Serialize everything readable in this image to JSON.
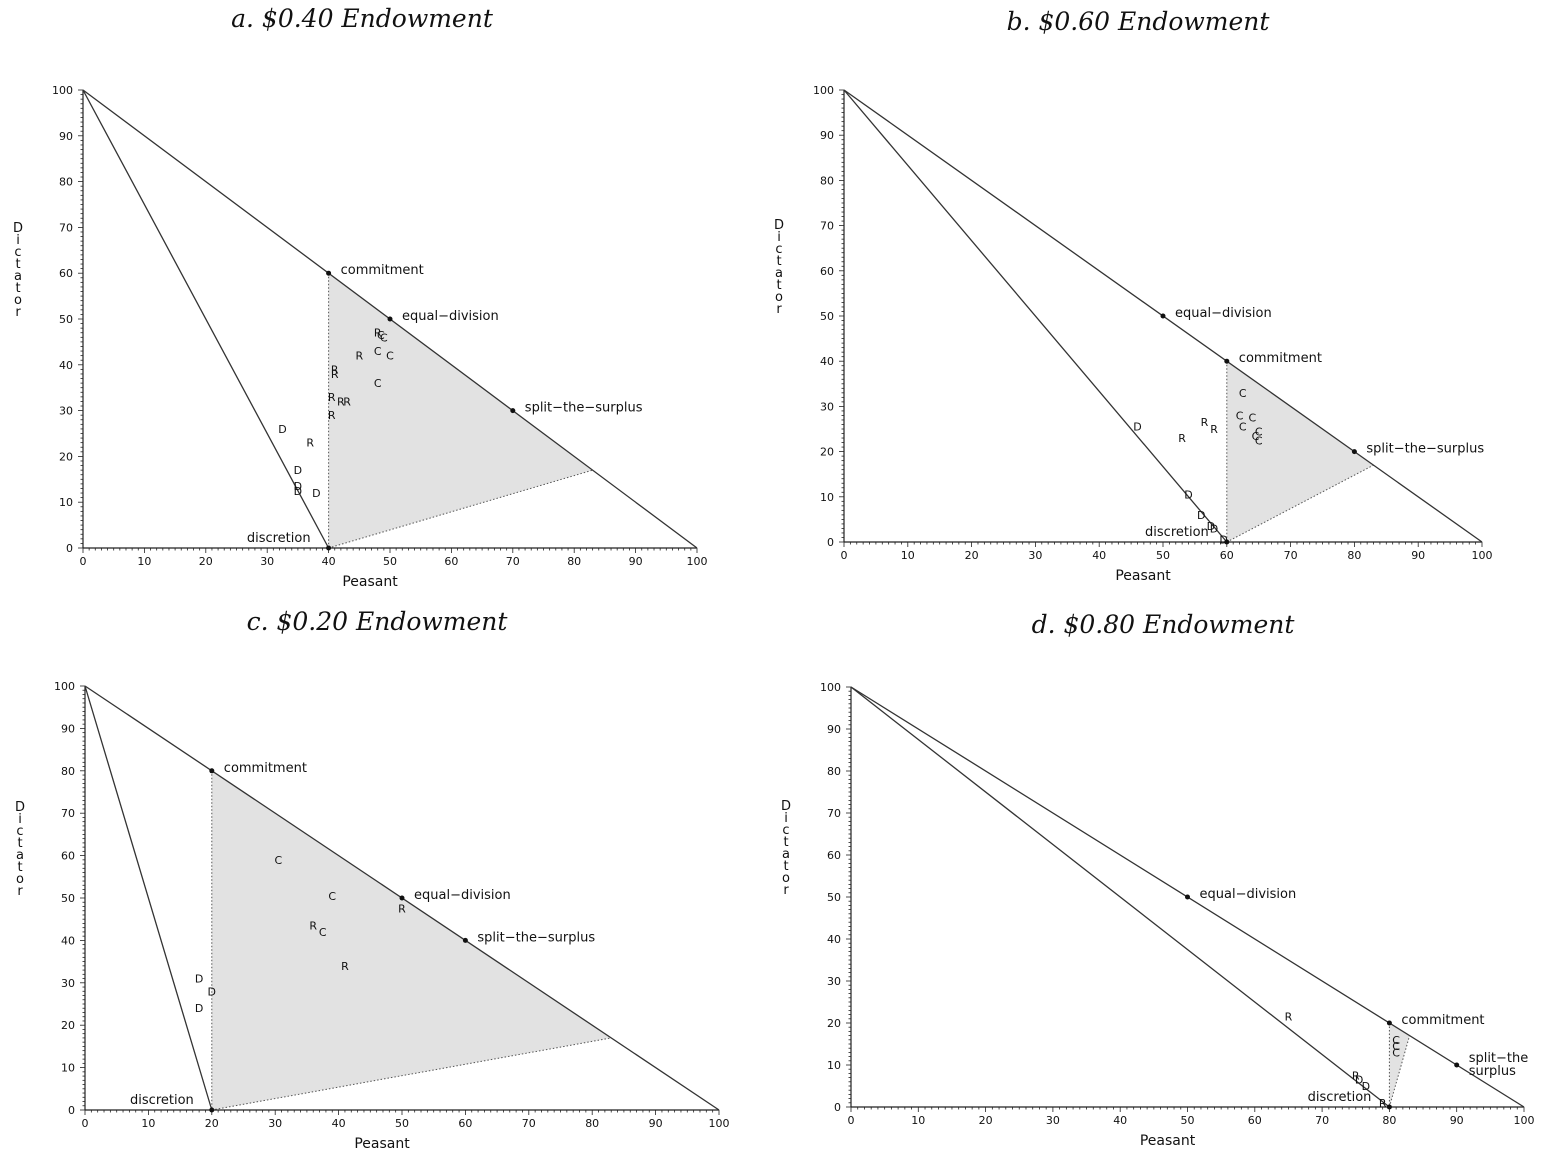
{
  "chart_data": [
    {
      "type": "scatter",
      "title": "a. $0.40 Endowment",
      "xlabel": "Peasant",
      "ylabel": "Dictator",
      "xlim": [
        0,
        100
      ],
      "ylim": [
        0,
        100
      ],
      "xticks": [
        0,
        10,
        20,
        30,
        40,
        50,
        60,
        70,
        80,
        90,
        100
      ],
      "yticks": [
        0,
        10,
        20,
        30,
        40,
        50,
        60,
        70,
        80,
        90,
        100
      ],
      "lines": [
        {
          "from": [
            0,
            100
          ],
          "to": [
            100,
            0
          ]
        },
        {
          "from": [
            0,
            100
          ],
          "to": [
            40,
            0
          ]
        }
      ],
      "shaded_region": [
        [
          40,
          60
        ],
        [
          83,
          17
        ],
        [
          40,
          0
        ]
      ],
      "annotations": [
        {
          "label": "commitment",
          "x": 40,
          "y": 60
        },
        {
          "label": "equal−division",
          "x": 50,
          "y": 50
        },
        {
          "label": "split−the−surplus",
          "x": 70,
          "y": 30
        },
        {
          "label": "discretion",
          "x": 40,
          "y": 0,
          "side": "left"
        }
      ],
      "points": [
        {
          "label": "R",
          "x": 48,
          "y": 47
        },
        {
          "label": "C",
          "x": 48.5,
          "y": 46.5
        },
        {
          "label": "C",
          "x": 49,
          "y": 46
        },
        {
          "label": "C",
          "x": 48,
          "y": 43
        },
        {
          "label": "C",
          "x": 50,
          "y": 42
        },
        {
          "label": "R",
          "x": 45,
          "y": 42
        },
        {
          "label": "R",
          "x": 41,
          "y": 39
        },
        {
          "label": "R",
          "x": 41,
          "y": 38
        },
        {
          "label": "C",
          "x": 48,
          "y": 36
        },
        {
          "label": "R",
          "x": 40.5,
          "y": 33
        },
        {
          "label": "R",
          "x": 42,
          "y": 32
        },
        {
          "label": "R",
          "x": 43,
          "y": 32
        },
        {
          "label": "R",
          "x": 40.5,
          "y": 29
        },
        {
          "label": "D",
          "x": 32.5,
          "y": 26
        },
        {
          "label": "R",
          "x": 37,
          "y": 23
        },
        {
          "label": "D",
          "x": 35,
          "y": 17
        },
        {
          "label": "D",
          "x": 35,
          "y": 13.5
        },
        {
          "label": "D",
          "x": 35,
          "y": 12.5
        },
        {
          "label": "D",
          "x": 38,
          "y": 12
        }
      ]
    },
    {
      "type": "scatter",
      "title": "b. $0.60 Endowment",
      "xlabel": "Peasant",
      "ylabel": "Dictator",
      "xlim": [
        0,
        100
      ],
      "ylim": [
        0,
        100
      ],
      "xticks": [
        0,
        10,
        20,
        30,
        40,
        50,
        60,
        70,
        80,
        90,
        100
      ],
      "yticks": [
        0,
        10,
        20,
        30,
        40,
        50,
        60,
        70,
        80,
        90,
        100
      ],
      "lines": [
        {
          "from": [
            0,
            100
          ],
          "to": [
            100,
            0
          ]
        },
        {
          "from": [
            0,
            100
          ],
          "to": [
            60,
            0
          ]
        }
      ],
      "shaded_region": [
        [
          60,
          40
        ],
        [
          83,
          17
        ],
        [
          60,
          0
        ]
      ],
      "annotations": [
        {
          "label": "equal−division",
          "x": 50,
          "y": 50
        },
        {
          "label": "commitment",
          "x": 60,
          "y": 40
        },
        {
          "label": "split−the−surplus",
          "x": 80,
          "y": 20
        },
        {
          "label": "discretion",
          "x": 60,
          "y": 0,
          "side": "left"
        }
      ],
      "points": [
        {
          "label": "C",
          "x": 62.5,
          "y": 33
        },
        {
          "label": "R",
          "x": 56.5,
          "y": 26.5
        },
        {
          "label": "R",
          "x": 58,
          "y": 25
        },
        {
          "label": "C",
          "x": 62,
          "y": 28
        },
        {
          "label": "C",
          "x": 64,
          "y": 27.5
        },
        {
          "label": "C",
          "x": 62.5,
          "y": 25.5
        },
        {
          "label": "C",
          "x": 65,
          "y": 24.5
        },
        {
          "label": "C",
          "x": 64.5,
          "y": 23.5
        },
        {
          "label": "C",
          "x": 65,
          "y": 22.5
        },
        {
          "label": "D",
          "x": 46,
          "y": 25.5
        },
        {
          "label": "R",
          "x": 53,
          "y": 23
        },
        {
          "label": "D",
          "x": 54,
          "y": 10.5
        },
        {
          "label": "D",
          "x": 56,
          "y": 6
        },
        {
          "label": "D",
          "x": 57.5,
          "y": 3.5
        },
        {
          "label": "D",
          "x": 58,
          "y": 3
        },
        {
          "label": "D",
          "x": 59.5,
          "y": 0.5
        }
      ]
    },
    {
      "type": "scatter",
      "title": "c. $0.20 Endowment",
      "xlabel": "Peasant",
      "ylabel": "Dictator",
      "xlim": [
        0,
        100
      ],
      "ylim": [
        0,
        100
      ],
      "xticks": [
        0,
        10,
        20,
        30,
        40,
        50,
        60,
        70,
        80,
        90,
        100
      ],
      "yticks": [
        0,
        10,
        20,
        30,
        40,
        50,
        60,
        70,
        80,
        90,
        100
      ],
      "lines": [
        {
          "from": [
            0,
            100
          ],
          "to": [
            100,
            0
          ]
        },
        {
          "from": [
            0,
            100
          ],
          "to": [
            20,
            0
          ]
        }
      ],
      "shaded_region": [
        [
          20,
          80
        ],
        [
          83,
          17
        ],
        [
          20,
          0
        ]
      ],
      "annotations": [
        {
          "label": "commitment",
          "x": 20,
          "y": 80
        },
        {
          "label": "equal−division",
          "x": 50,
          "y": 50
        },
        {
          "label": "split−the−surplus",
          "x": 60,
          "y": 40
        },
        {
          "label": "discretion",
          "x": 20,
          "y": 0,
          "side": "left"
        }
      ],
      "points": [
        {
          "label": "C",
          "x": 30.5,
          "y": 59
        },
        {
          "label": "C",
          "x": 39,
          "y": 50.5
        },
        {
          "label": "R",
          "x": 50,
          "y": 47.5
        },
        {
          "label": "R",
          "x": 36,
          "y": 43.5
        },
        {
          "label": "C",
          "x": 37.5,
          "y": 42
        },
        {
          "label": "R",
          "x": 41,
          "y": 34
        },
        {
          "label": "D",
          "x": 18,
          "y": 31
        },
        {
          "label": "D",
          "x": 20,
          "y": 28
        },
        {
          "label": "D",
          "x": 18,
          "y": 24
        }
      ]
    },
    {
      "type": "scatter",
      "title": "d. $0.80 Endowment",
      "xlabel": "Peasant",
      "ylabel": "Dictator",
      "xlim": [
        0,
        100
      ],
      "ylim": [
        0,
        100
      ],
      "xticks": [
        0,
        10,
        20,
        30,
        40,
        50,
        60,
        70,
        80,
        90,
        100
      ],
      "yticks": [
        0,
        10,
        20,
        30,
        40,
        50,
        60,
        70,
        80,
        90,
        100
      ],
      "lines": [
        {
          "from": [
            0,
            100
          ],
          "to": [
            100,
            0
          ]
        },
        {
          "from": [
            0,
            100
          ],
          "to": [
            80,
            0
          ]
        }
      ],
      "shaded_region": [
        [
          80,
          20
        ],
        [
          83,
          17
        ],
        [
          80,
          0
        ]
      ],
      "annotations": [
        {
          "label": "equal−division",
          "x": 50,
          "y": 50
        },
        {
          "label": "commitment",
          "x": 80,
          "y": 20
        },
        {
          "label": "split−the\nsurplus",
          "x": 90,
          "y": 10
        },
        {
          "label": "discretion",
          "x": 80,
          "y": 0,
          "side": "left"
        }
      ],
      "points": [
        {
          "label": "R",
          "x": 65,
          "y": 21.5
        },
        {
          "label": "C",
          "x": 81,
          "y": 16
        },
        {
          "label": "C",
          "x": 81,
          "y": 14.5
        },
        {
          "label": "C",
          "x": 81,
          "y": 13
        },
        {
          "label": "R",
          "x": 75,
          "y": 7.5
        },
        {
          "label": "D",
          "x": 75.5,
          "y": 6.5
        },
        {
          "label": "D",
          "x": 76.5,
          "y": 5
        },
        {
          "label": "R",
          "x": 79,
          "y": 1
        }
      ]
    }
  ]
}
